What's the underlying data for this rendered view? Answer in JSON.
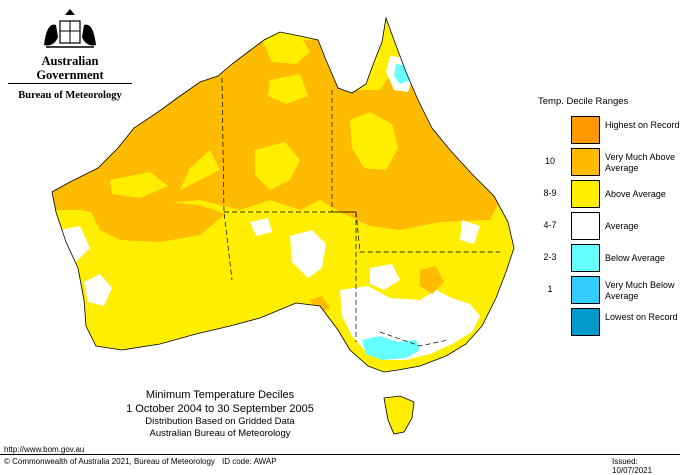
{
  "logo": {
    "government": "Australian Government",
    "bureau": "Bureau of Meteorology",
    "crest_icon": "commonwealth-coat-of-arms"
  },
  "legend": {
    "title": "Temp. Decile Ranges",
    "items": [
      {
        "code": "",
        "label": "Highest on Record",
        "color": "#ff9900"
      },
      {
        "code": "10",
        "label": "Very Much Above Average",
        "color": "#ffbb00"
      },
      {
        "code": "8-9",
        "label": "Above Average",
        "color": "#ffee00"
      },
      {
        "code": "4-7",
        "label": "Average",
        "color": "#ffffff"
      },
      {
        "code": "2-3",
        "label": "Below Average",
        "color": "#66ffff"
      },
      {
        "code": "1",
        "label": "Very Much Below Average",
        "color": "#33ccff"
      },
      {
        "code": "",
        "label": "Lowest on Record",
        "color": "#0099cc"
      }
    ]
  },
  "caption": {
    "title": "Minimum Temperature Deciles",
    "period": "1 October 2004 to 30 September 2005",
    "line1": "Distribution Based on Gridded Data",
    "line2": "Australian Bureau of Meteorology"
  },
  "footer": {
    "url": "http://www.bom.gov.au",
    "copyright": "© Commonwealth of Australia 2021, Bureau of Meteorology",
    "id_code": "ID code: AWAP",
    "issued": "Issued: 10/07/2021"
  }
}
